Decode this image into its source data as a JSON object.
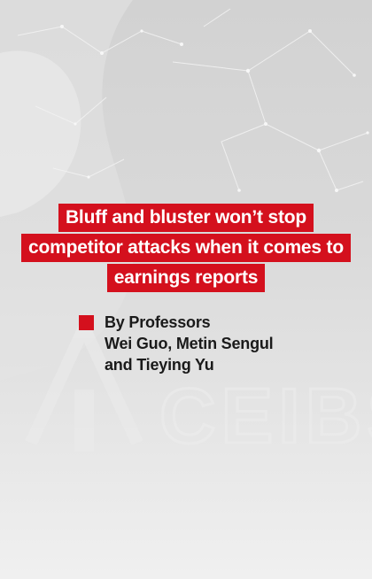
{
  "cover": {
    "headline_lines": [
      "Bluff and bluster won’t stop",
      "competitor attacks when it comes to",
      "earnings reports"
    ],
    "byline_lines": [
      "By Professors",
      "Wei Guo, Metin Sengul",
      "and Tieying Yu"
    ],
    "watermark_logo": "CEIBS",
    "colors": {
      "accent_red": "#d4101d",
      "headline_text": "#ffffff",
      "byline_text": "#1a1a1a",
      "background_gray": "#d9d9d9"
    }
  }
}
